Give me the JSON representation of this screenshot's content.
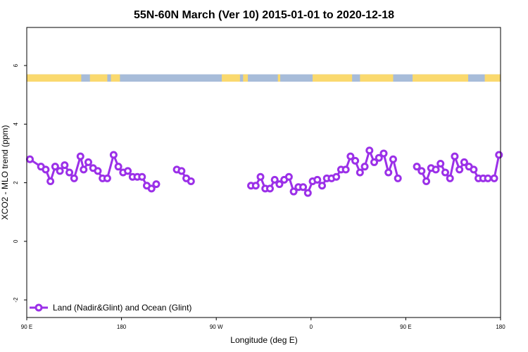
{
  "chart_data": {
    "type": "line",
    "title": "55N-60N March (Ver 10)   2015-01-01 to 2020-12-18",
    "xlabel": "Longitude (deg E)",
    "ylabel": "XCO2 - MLO trend (ppm)",
    "xlim": [
      90,
      390
    ],
    "ylim": [
      -2.6,
      7.3
    ],
    "x_ticks": [
      {
        "value": 90,
        "label": "90 E"
      },
      {
        "value": 150,
        "label": "180"
      },
      {
        "value": 210,
        "label": "90 W"
      },
      {
        "value": 270,
        "label": "0"
      },
      {
        "value": 330,
        "label": "90 E"
      },
      {
        "value": 390,
        "label": "180"
      }
    ],
    "y_ticks": [
      -2,
      0,
      2,
      4,
      6
    ],
    "grid": false,
    "legend": {
      "position": "bottom-left",
      "entries": [
        "Land (Nadir&Glint) and Ocean (Glint)"
      ]
    },
    "land_ocean_strip": {
      "y_range": [
        5.45,
        5.7
      ],
      "ocean_color": "#a7bcd9",
      "land_color": "#fad96e",
      "land_segments": [
        [
          90,
          124.5
        ],
        [
          130,
          141
        ],
        [
          143.3,
          149
        ],
        [
          213.5,
          225
        ],
        [
          227,
          230
        ],
        [
          249,
          250.5
        ],
        [
          271,
          296
        ],
        [
          301,
          322
        ],
        [
          334.3,
          369.5
        ],
        [
          380,
          390
        ]
      ]
    },
    "series": [
      {
        "color": "#9b30e8",
        "segments": [
          {
            "x": [
              92,
              99,
              102,
              105,
              108,
              111,
              114,
              117,
              120,
              124,
              126,
              129,
              132,
              135,
              138,
              141,
              145,
              148,
              151,
              154,
              157,
              160,
              163,
              166,
              169,
              172
            ],
            "y": [
              2.8,
              2.55,
              2.45,
              2.05,
              2.55,
              2.4,
              2.6,
              2.35,
              2.15,
              2.9,
              2.45,
              2.7,
              2.5,
              2.4,
              2.15,
              2.15,
              2.95,
              2.55,
              2.35,
              2.4,
              2.2,
              2.2,
              2.2,
              1.9,
              1.8,
              1.95
            ]
          },
          {
            "x": [
              185,
              188,
              191,
              194
            ],
            "y": [
              2.45,
              2.4,
              2.15,
              2.05
            ]
          },
          {
            "x": [
              232,
              235,
              238,
              241,
              244,
              247,
              250,
              253,
              256,
              259,
              262,
              265,
              268,
              271,
              274,
              277,
              280,
              283,
              286,
              289,
              292,
              295,
              298,
              301,
              304,
              307,
              310,
              313,
              316,
              319,
              322,
              325
            ],
            "y": [
              1.9,
              1.9,
              2.2,
              1.8,
              1.8,
              2.1,
              1.95,
              2.1,
              2.2,
              1.7,
              1.85,
              1.85,
              1.65,
              2.05,
              2.1,
              1.9,
              2.15,
              2.15,
              2.2,
              2.45,
              2.45,
              2.9,
              2.75,
              2.35,
              2.55,
              3.1,
              2.7,
              2.85,
              3.0,
              2.35,
              2.8,
              2.15
            ]
          },
          {
            "x": [
              337,
              340,
              343,
              346,
              349,
              352,
              355,
              358,
              361,
              364,
              367,
              370,
              373,
              376,
              379,
              382,
              386,
              389
            ],
            "y": [
              2.55,
              2.4,
              2.05,
              2.5,
              2.45,
              2.65,
              2.35,
              2.15,
              2.9,
              2.45,
              2.7,
              2.55,
              2.45,
              2.15,
              2.15,
              2.15,
              2.15,
              2.95
            ]
          }
        ]
      }
    ]
  }
}
